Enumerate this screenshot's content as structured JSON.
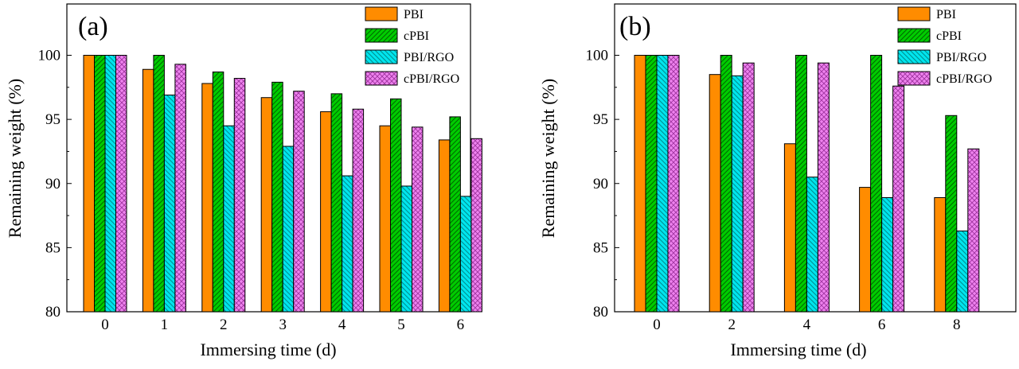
{
  "chart_data": [
    {
      "type": "bar",
      "panel_label": "(a)",
      "xlabel": "Immersing time (d)",
      "ylabel": "Remaining weight (%)",
      "ylim": [
        80,
        104
      ],
      "yticks": [
        80,
        85,
        90,
        95,
        100
      ],
      "categories": [
        "0",
        "1",
        "2",
        "3",
        "4",
        "5",
        "6"
      ],
      "legend_position": "top-right",
      "series": [
        {
          "name": "PBI",
          "color": "#ff8c00",
          "pattern": "solid",
          "values": [
            100,
            98.9,
            97.8,
            96.7,
            95.6,
            94.5,
            93.4
          ]
        },
        {
          "name": "cPBI",
          "color": "#00cc00",
          "pattern": "hatch",
          "values": [
            100,
            100,
            98.7,
            97.9,
            97.0,
            96.6,
            95.2
          ]
        },
        {
          "name": "PBI/RGO",
          "color": "#00e5ee",
          "pattern": "hatch",
          "values": [
            100,
            96.9,
            94.5,
            92.9,
            90.6,
            89.8,
            89.0
          ]
        },
        {
          "name": "cPBI/RGO",
          "color": "#ee82ee",
          "pattern": "cross",
          "values": [
            100,
            99.3,
            98.2,
            97.2,
            95.8,
            94.4,
            93.5
          ]
        }
      ]
    },
    {
      "type": "bar",
      "panel_label": "(b)",
      "xlabel": "Immersing time (d)",
      "ylabel": "Remaining weight (%)",
      "ylim": [
        80,
        104
      ],
      "yticks": [
        80,
        85,
        90,
        95,
        100
      ],
      "categories": [
        "0",
        "2",
        "4",
        "6",
        "8"
      ],
      "legend_position": "top-right",
      "series": [
        {
          "name": "PBI",
          "color": "#ff8c00",
          "pattern": "solid",
          "values": [
            100,
            98.5,
            93.1,
            89.7,
            88.9
          ]
        },
        {
          "name": "cPBI",
          "color": "#00cc00",
          "pattern": "hatch",
          "values": [
            100,
            100,
            100,
            100,
            95.3
          ]
        },
        {
          "name": "PBI/RGO",
          "color": "#00e5ee",
          "pattern": "hatch",
          "values": [
            100,
            98.4,
            90.5,
            88.9,
            86.3
          ]
        },
        {
          "name": "cPBI/RGO",
          "color": "#ee82ee",
          "pattern": "cross",
          "values": [
            100,
            99.4,
            99.4,
            97.6,
            92.7
          ]
        }
      ]
    }
  ]
}
